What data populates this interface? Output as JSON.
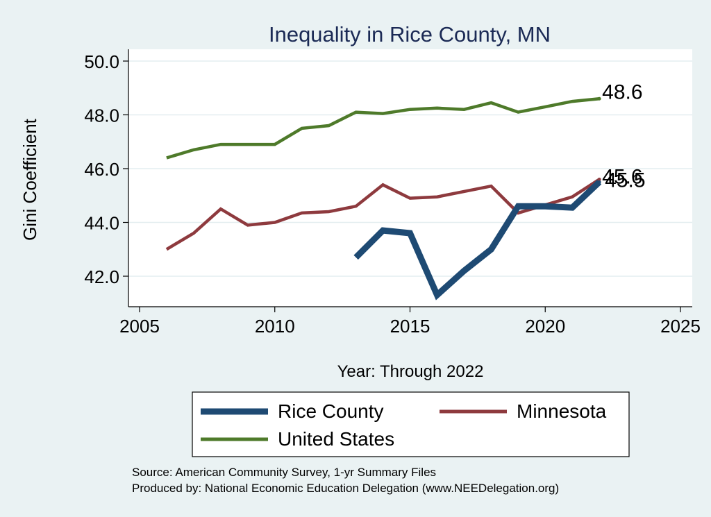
{
  "chart_data": {
    "type": "line",
    "title": "Inequality in Rice County, MN",
    "xlabel": "Year: Through 2022",
    "ylabel": "Gini Coefficient",
    "xlim": [
      2005,
      2025
    ],
    "ylim": [
      41,
      50.3
    ],
    "xticks": [
      2005,
      2010,
      2015,
      2020,
      2025
    ],
    "yticks": [
      42.0,
      44.0,
      46.0,
      48.0,
      50.0
    ],
    "ytick_labels": [
      "42.0",
      "44.0",
      "46.0",
      "48.0",
      "50.0"
    ],
    "grid": true,
    "legend_position": "bottom",
    "series": [
      {
        "name": "Rice County",
        "color": "#1e4a73",
        "weight": "thick",
        "x": [
          2013,
          2014,
          2015,
          2016,
          2017,
          2018,
          2019,
          2020,
          2021,
          2022
        ],
        "values": [
          42.7,
          43.7,
          43.6,
          41.3,
          42.2,
          43.0,
          44.6,
          44.6,
          44.55,
          45.5
        ],
        "end_label": "45.5"
      },
      {
        "name": "Minnesota",
        "color": "#8e3a3e",
        "weight": "medium",
        "x": [
          2006,
          2007,
          2008,
          2009,
          2010,
          2011,
          2012,
          2013,
          2014,
          2015,
          2016,
          2017,
          2018,
          2019,
          2020,
          2021,
          2022
        ],
        "values": [
          43.0,
          43.6,
          44.5,
          43.9,
          44.0,
          44.35,
          44.4,
          44.6,
          45.4,
          44.9,
          44.95,
          45.15,
          45.35,
          44.35,
          44.65,
          44.95,
          45.6
        ],
        "end_label": "45.6"
      },
      {
        "name": "United States",
        "color": "#4e7a2a",
        "weight": "medium",
        "x": [
          2006,
          2007,
          2008,
          2009,
          2010,
          2011,
          2012,
          2013,
          2014,
          2015,
          2016,
          2017,
          2018,
          2019,
          2020,
          2021,
          2022
        ],
        "values": [
          46.4,
          46.7,
          46.9,
          46.9,
          46.9,
          47.5,
          47.6,
          48.1,
          48.05,
          48.2,
          48.25,
          48.2,
          48.45,
          48.1,
          48.3,
          48.5,
          48.6
        ],
        "end_label": "48.6"
      }
    ],
    "source_lines": [
      "Source: American Community Survey, 1-yr Summary Files",
      "Produced by: National Economic Education Delegation (www.NEEDelegation.org)"
    ]
  }
}
